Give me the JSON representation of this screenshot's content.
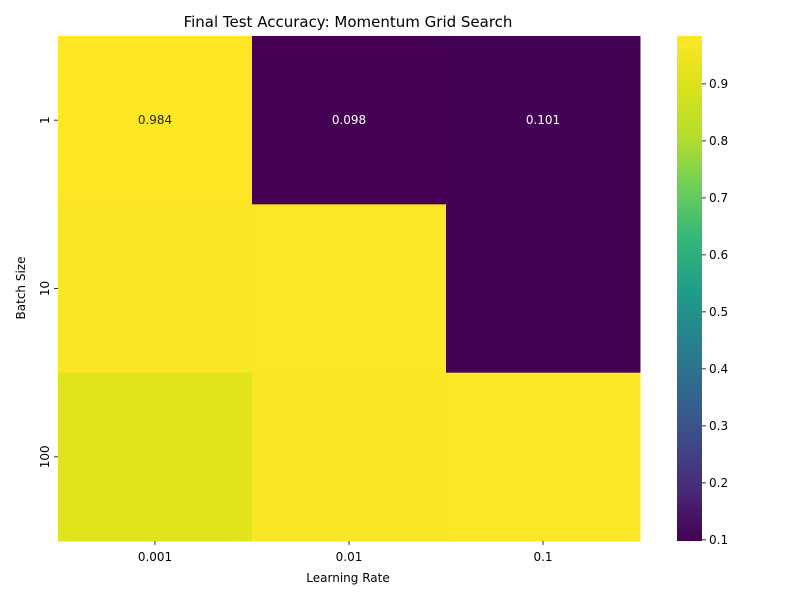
{
  "chart_data": {
    "type": "heatmap",
    "title": "Final Test Accuracy: Momentum Grid Search",
    "xlabel": "Learning Rate",
    "ylabel": "Batch Size",
    "x_categories": [
      "0.001",
      "0.01",
      "0.1"
    ],
    "y_categories": [
      "1",
      "10",
      "100"
    ],
    "values": [
      [
        0.984,
        0.098,
        0.101
      ],
      [
        0.975,
        0.98,
        0.101
      ],
      [
        0.915,
        0.975,
        0.98
      ]
    ],
    "annotations": [
      [
        "0.984",
        "0.098",
        "0.101"
      ],
      [
        "",
        "",
        ""
      ],
      [
        "",
        "",
        ""
      ]
    ],
    "colorbar": {
      "colormap": "viridis",
      "min": 0.098,
      "max": 0.984,
      "ticks": [
        "0.1",
        "0.2",
        "0.3",
        "0.4",
        "0.5",
        "0.6",
        "0.7",
        "0.8",
        "0.9"
      ]
    }
  }
}
